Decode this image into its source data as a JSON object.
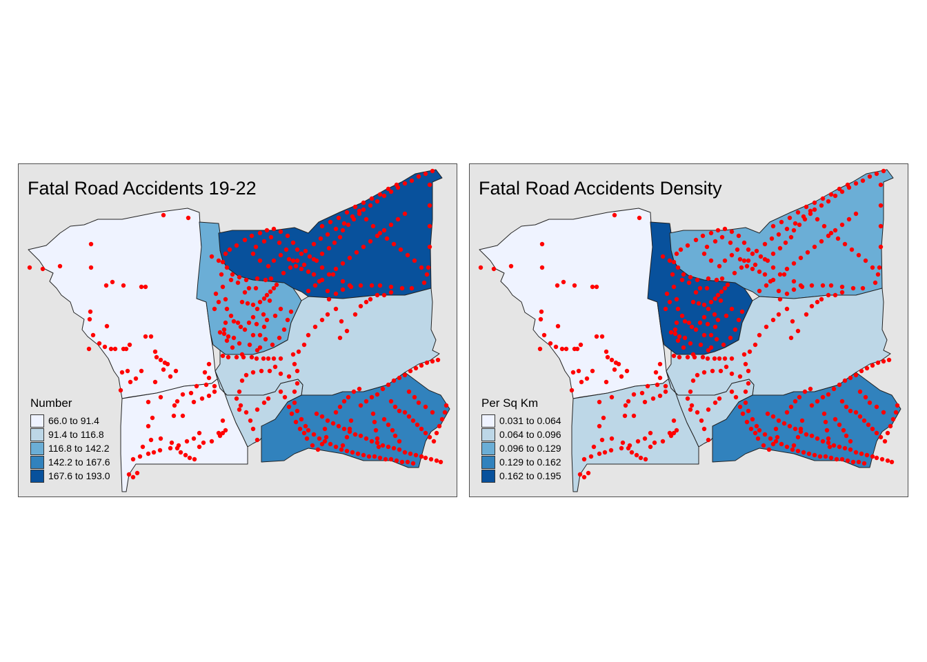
{
  "maps": [
    {
      "title": "Fatal Road Accidents 19-22",
      "legend_title": "Number",
      "classes": [
        {
          "label": "66.0 to 91.4",
          "color": "#eff3ff"
        },
        {
          "label": "91.4 to 116.8",
          "color": "#bdd7e7"
        },
        {
          "label": "116.8 to 142.2",
          "color": "#6baed6"
        },
        {
          "label": "142.2 to 167.6",
          "color": "#3182bd"
        },
        {
          "label": "167.6 to 193.0",
          "color": "#08519c"
        }
      ],
      "region_fill_class": {
        "west": 0,
        "southwest": 0,
        "north_central": 2,
        "northeast": 4,
        "central": 1,
        "south_central": 1,
        "southeast": 3
      }
    },
    {
      "title": "Fatal Road Accidents Density",
      "legend_title": "Per Sq Km",
      "classes": [
        {
          "label": "0.031 to 0.064",
          "color": "#eff3ff"
        },
        {
          "label": "0.064 to 0.096",
          "color": "#bdd7e7"
        },
        {
          "label": "0.096 to 0.129",
          "color": "#6baed6"
        },
        {
          "label": "0.129 to 0.162",
          "color": "#3182bd"
        },
        {
          "label": "0.162 to 0.195",
          "color": "#08519c"
        }
      ],
      "region_fill_class": {
        "west": 0,
        "southwest": 1,
        "north_central": 4,
        "northeast": 2,
        "central": 1,
        "south_central": 1,
        "southeast": 3
      }
    }
  ],
  "colors": {
    "panel_background": "#e5e5e5",
    "accident_points": "#ff0000",
    "boundary": "#222222"
  }
}
